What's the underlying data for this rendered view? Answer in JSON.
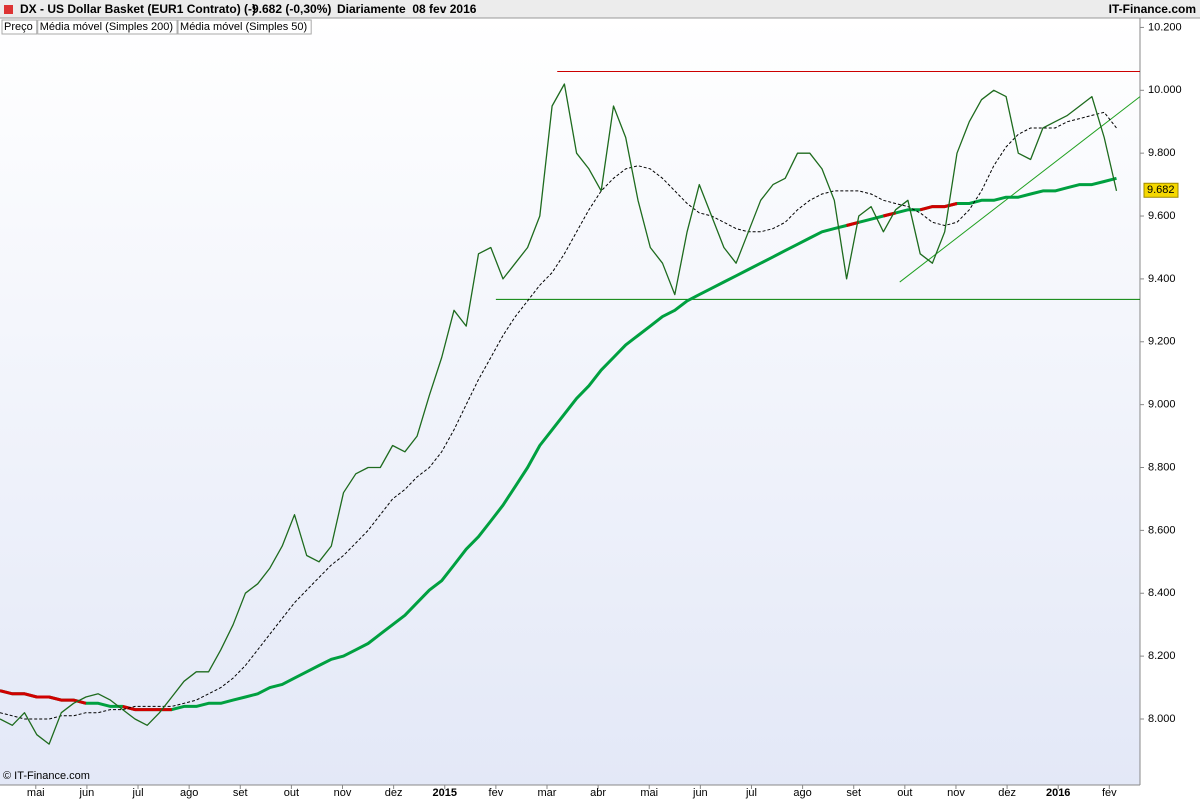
{
  "chart_data": {
    "type": "line",
    "title": "DX - US Dollar Basket (EUR1 Contrato) (-)",
    "quote": "9.682 (-0,30%)",
    "period": "Diariamente  08 fev 2016",
    "brand": "IT-Finance.com",
    "credit": "© IT-Finance.com",
    "last_value": 9.682,
    "xlim": [
      -0.7,
      21.6
    ],
    "ylim": [
      7.79,
      10.23
    ],
    "xticks": [
      {
        "value": 0,
        "label": "mai"
      },
      {
        "value": 1,
        "label": "jun"
      },
      {
        "value": 2,
        "label": "jul"
      },
      {
        "value": 3,
        "label": "ago"
      },
      {
        "value": 4,
        "label": "set"
      },
      {
        "value": 5,
        "label": "out"
      },
      {
        "value": 6,
        "label": "nov"
      },
      {
        "value": 7,
        "label": "dez"
      },
      {
        "value": 8,
        "label": "2015"
      },
      {
        "value": 9,
        "label": "fev"
      },
      {
        "value": 10,
        "label": "mar"
      },
      {
        "value": 11,
        "label": "abr"
      },
      {
        "value": 12,
        "label": "mai"
      },
      {
        "value": 13,
        "label": "jun"
      },
      {
        "value": 14,
        "label": "jul"
      },
      {
        "value": 15,
        "label": "ago"
      },
      {
        "value": 16,
        "label": "set"
      },
      {
        "value": 17,
        "label": "out"
      },
      {
        "value": 18,
        "label": "nov"
      },
      {
        "value": 19,
        "label": "dez"
      },
      {
        "value": 20,
        "label": "2016"
      },
      {
        "value": 21,
        "label": "fev"
      }
    ],
    "yticks": [
      {
        "value": 8,
        "label": "8.000"
      },
      {
        "value": 8.2,
        "label": "8.200"
      },
      {
        "value": 8.4,
        "label": "8.400"
      },
      {
        "value": 8.6,
        "label": "8.600"
      },
      {
        "value": 8.8,
        "label": "8.800"
      },
      {
        "value": 9,
        "label": "9.000"
      },
      {
        "value": 9.2,
        "label": "9.200"
      },
      {
        "value": 9.4,
        "label": "9.400"
      },
      {
        "value": 9.6,
        "label": "9.600"
      },
      {
        "value": 9.8,
        "label": "9.800"
      },
      {
        "value": 10,
        "label": "10.000"
      },
      {
        "value": 10.2,
        "label": "10.200"
      }
    ],
    "x": [
      -0.7,
      -0.46,
      -0.22,
      0.02,
      0.26,
      0.5,
      0.74,
      0.98,
      1.22,
      1.46,
      1.7,
      1.94,
      2.18,
      2.42,
      2.66,
      2.9,
      3.14,
      3.38,
      3.62,
      3.86,
      4.1,
      4.34,
      4.58,
      4.82,
      5.06,
      5.3,
      5.54,
      5.78,
      6.02,
      6.26,
      6.5,
      6.74,
      6.98,
      7.22,
      7.46,
      7.7,
      7.94,
      8.18,
      8.42,
      8.66,
      8.9,
      9.14,
      9.38,
      9.62,
      9.86,
      10.1,
      10.34,
      10.58,
      10.82,
      11.06,
      11.3,
      11.54,
      11.78,
      12.02,
      12.26,
      12.5,
      12.74,
      12.98,
      13.22,
      13.46,
      13.7,
      13.94,
      14.18,
      14.42,
      14.66,
      14.9,
      15.14,
      15.38,
      15.62,
      15.86,
      16.1,
      16.34,
      16.58,
      16.82,
      17.06,
      17.3,
      17.54,
      17.78,
      18.02,
      18.26,
      18.5,
      18.74,
      18.98,
      19.22,
      19.46,
      19.7,
      19.94,
      20.18,
      20.42,
      20.66,
      20.9,
      21.14
    ],
    "series": [
      {
        "name": "Preço",
        "color": "#1e6b1e",
        "width": 1.3,
        "values": [
          8.0,
          7.98,
          8.02,
          7.95,
          7.92,
          8.02,
          8.05,
          8.07,
          8.08,
          8.06,
          8.03,
          8.0,
          7.98,
          8.02,
          8.07,
          8.12,
          8.15,
          8.15,
          8.22,
          8.3,
          8.4,
          8.43,
          8.48,
          8.55,
          8.65,
          8.52,
          8.5,
          8.55,
          8.72,
          8.78,
          8.8,
          8.8,
          8.87,
          8.85,
          8.9,
          9.03,
          9.15,
          9.3,
          9.25,
          9.48,
          9.5,
          9.4,
          9.45,
          9.5,
          9.6,
          9.95,
          10.02,
          9.8,
          9.75,
          9.68,
          9.95,
          9.85,
          9.65,
          9.5,
          9.45,
          9.35,
          9.55,
          9.7,
          9.6,
          9.5,
          9.45,
          9.55,
          9.65,
          9.7,
          9.72,
          9.8,
          9.8,
          9.75,
          9.65,
          9.4,
          9.6,
          9.63,
          9.55,
          9.62,
          9.65,
          9.48,
          9.45,
          9.55,
          9.8,
          9.9,
          9.97,
          10.0,
          9.98,
          9.8,
          9.78,
          9.88,
          9.9,
          9.92,
          9.95,
          9.98,
          9.85,
          9.68
        ]
      },
      {
        "name": "Média móvel (Simples 200)",
        "color": "#00a040",
        "down_color": "#d00000",
        "width": 3,
        "values": [
          8.09,
          8.08,
          8.08,
          8.07,
          8.07,
          8.06,
          8.06,
          8.05,
          8.05,
          8.04,
          8.04,
          8.03,
          8.03,
          8.03,
          8.03,
          8.04,
          8.04,
          8.05,
          8.05,
          8.06,
          8.07,
          8.08,
          8.1,
          8.11,
          8.13,
          8.15,
          8.17,
          8.19,
          8.2,
          8.22,
          8.24,
          8.27,
          8.3,
          8.33,
          8.37,
          8.41,
          8.44,
          8.49,
          8.54,
          8.58,
          8.63,
          8.68,
          8.74,
          8.8,
          8.87,
          8.92,
          8.97,
          9.02,
          9.06,
          9.11,
          9.15,
          9.19,
          9.22,
          9.25,
          9.28,
          9.3,
          9.33,
          9.35,
          9.37,
          9.39,
          9.41,
          9.43,
          9.45,
          9.47,
          9.49,
          9.51,
          9.53,
          9.55,
          9.56,
          9.57,
          9.58,
          9.59,
          9.6,
          9.61,
          9.62,
          9.62,
          9.63,
          9.63,
          9.64,
          9.64,
          9.65,
          9.65,
          9.66,
          9.66,
          9.67,
          9.68,
          9.68,
          9.69,
          9.7,
          9.7,
          9.71,
          9.72
        ]
      },
      {
        "name": "Média móvel (Simples 50)",
        "color": "#000000",
        "dash": true,
        "width": 1,
        "values": [
          8.02,
          8.01,
          8.0,
          8.0,
          8.0,
          8.01,
          8.01,
          8.02,
          8.02,
          8.03,
          8.03,
          8.04,
          8.04,
          8.04,
          8.04,
          8.05,
          8.06,
          8.08,
          8.1,
          8.13,
          8.17,
          8.22,
          8.27,
          8.32,
          8.37,
          8.41,
          8.45,
          8.49,
          8.52,
          8.56,
          8.6,
          8.65,
          8.7,
          8.73,
          8.77,
          8.8,
          8.85,
          8.92,
          9.0,
          9.08,
          9.15,
          9.22,
          9.28,
          9.33,
          9.38,
          9.42,
          9.48,
          9.55,
          9.62,
          9.68,
          9.72,
          9.75,
          9.76,
          9.75,
          9.72,
          9.68,
          9.64,
          9.61,
          9.6,
          9.58,
          9.56,
          9.55,
          9.55,
          9.56,
          9.58,
          9.62,
          9.65,
          9.67,
          9.68,
          9.68,
          9.68,
          9.67,
          9.65,
          9.64,
          9.63,
          9.61,
          9.58,
          9.57,
          9.58,
          9.62,
          9.68,
          9.76,
          9.82,
          9.86,
          9.88,
          9.88,
          9.88,
          9.9,
          9.91,
          9.92,
          9.93,
          9.88
        ]
      }
    ],
    "hlines": [
      {
        "value": 10.06,
        "from": 10.2,
        "color": "#cc0000"
      },
      {
        "value": 9.335,
        "from": 9.0,
        "color": "#008000"
      }
    ],
    "trendline": {
      "x": [
        16.9,
        21.6
      ],
      "y": [
        9.39,
        9.98
      ],
      "color": "#20a020"
    }
  }
}
